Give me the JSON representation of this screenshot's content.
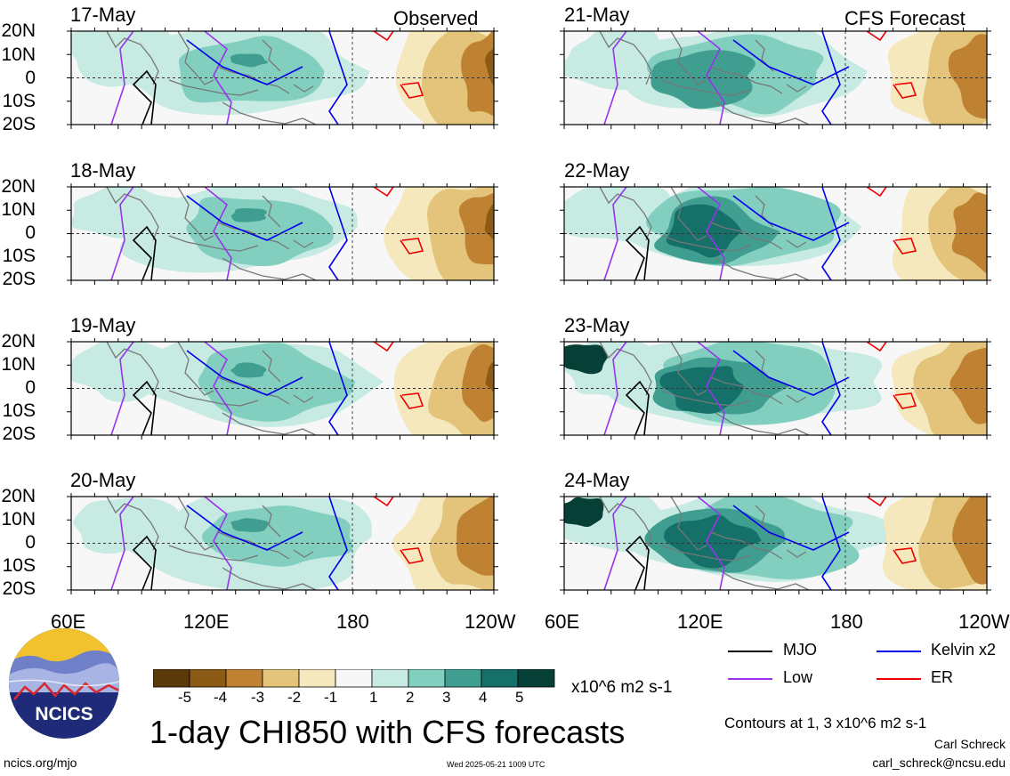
{
  "panels": {
    "left_corner_label": "Observed",
    "right_corner_label": "CFS Forecast",
    "left": [
      "17-May",
      "18-May",
      "19-May",
      "20-May"
    ],
    "right": [
      "21-May",
      "22-May",
      "23-May",
      "24-May"
    ]
  },
  "lat_labels": [
    "20N",
    "10N",
    "0",
    "10S",
    "20S"
  ],
  "lon_labels": [
    "60E",
    "120E",
    "180",
    "120W"
  ],
  "legend": {
    "mjo": {
      "label": "MJO",
      "color": "#000000"
    },
    "low": {
      "label": "Low",
      "color": "#9933ee"
    },
    "kelvin": {
      "label": "Kelvin x2",
      "color": "#0000ee"
    },
    "er": {
      "label": "ER",
      "color": "#ee0000"
    }
  },
  "colorbar": {
    "labels": [
      "-5",
      "-4",
      "-3",
      "-2",
      "-1",
      "1",
      "2",
      "3",
      "4",
      "5"
    ],
    "colors": [
      "#5a3a0a",
      "#8b5a14",
      "#bf8232",
      "#e3c47a",
      "#f5e8bc",
      "#f7f7f7",
      "#c7eae2",
      "#82cfc0",
      "#3f9e90",
      "#15706a",
      "#053f36"
    ],
    "units": "x10^6 m2 s-1"
  },
  "title": "1-day CHI850 with CFS forecasts",
  "contours_note": "Contours at 1, 3 x10^6 m2 s-1",
  "author": "Carl Schreck",
  "email": "carl_schreck@ncsu.edu",
  "url": "ncics.org/mjo",
  "timestamp": "Wed 2025-05-21 1009 UTC",
  "logo_text": "NCICS"
}
